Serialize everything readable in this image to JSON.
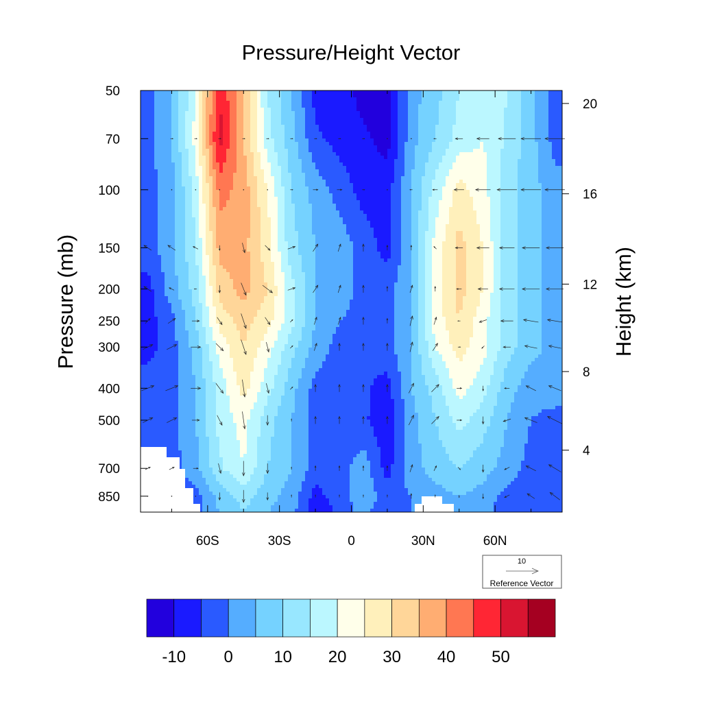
{
  "chart_data": {
    "type": "heatmap",
    "title": "Pressure/Height Vector",
    "ylabel": "Pressure (mb)",
    "ylabel_right": "Height (km)",
    "xlabel": "",
    "xlim": [
      -88,
      88
    ],
    "ylim": [
      50,
      950
    ],
    "y_scale": "log",
    "x_ticks": [
      {
        "value": -60,
        "label": "60S"
      },
      {
        "value": -30,
        "label": "30S"
      },
      {
        "value": 0,
        "label": "0"
      },
      {
        "value": 30,
        "label": "30N"
      },
      {
        "value": 60,
        "label": "60N"
      }
    ],
    "y_ticks": [
      50,
      70,
      100,
      150,
      200,
      250,
      300,
      400,
      500,
      700,
      850
    ],
    "y_ticks_right": [
      20,
      16,
      12,
      8,
      4
    ],
    "grid_lats": [
      -85,
      -75,
      -65,
      -55,
      -45,
      -35,
      -25,
      -15,
      -5,
      5,
      15,
      25,
      35,
      45,
      55,
      65,
      75,
      85
    ],
    "grid_pressures": [
      50,
      70,
      100,
      150,
      200,
      250,
      300,
      400,
      500,
      700,
      850,
      950
    ],
    "values": [
      [
        -2,
        5,
        20,
        50,
        35,
        15,
        5,
        -7,
        -7,
        -12,
        -12,
        3,
        8,
        15,
        20,
        15,
        7,
        -2
      ],
      [
        -2,
        5,
        22,
        52,
        35,
        17,
        7,
        -4,
        -7,
        -9,
        -12,
        3,
        10,
        17,
        20,
        14,
        7,
        -2
      ],
      [
        -2,
        3,
        17,
        42,
        38,
        25,
        10,
        3,
        -2,
        -7,
        -7,
        5,
        17,
        27,
        22,
        12,
        7,
        2
      ],
      [
        -2,
        3,
        15,
        37,
        37,
        27,
        12,
        5,
        3,
        -2,
        -7,
        5,
        22,
        32,
        25,
        12,
        7,
        3
      ],
      [
        -7,
        3,
        12,
        32,
        37,
        30,
        17,
        5,
        3,
        -2,
        -2,
        5,
        22,
        32,
        25,
        12,
        7,
        3
      ],
      [
        -7,
        -2,
        10,
        27,
        32,
        27,
        17,
        5,
        0,
        -2,
        -2,
        5,
        22,
        30,
        22,
        12,
        7,
        3
      ],
      [
        -7,
        -2,
        7,
        22,
        30,
        22,
        12,
        3,
        -2,
        -4,
        -2,
        5,
        20,
        27,
        22,
        12,
        7,
        3
      ],
      [
        -2,
        -2,
        5,
        17,
        27,
        17,
        7,
        -2,
        -2,
        -4,
        -7,
        5,
        12,
        22,
        17,
        7,
        2,
        3
      ],
      [
        -2,
        -2,
        5,
        17,
        22,
        12,
        5,
        -2,
        -4,
        -4,
        -9,
        3,
        10,
        17,
        12,
        5,
        0,
        -2
      ],
      [
        -2,
        -2,
        3,
        14,
        20,
        10,
        5,
        -2,
        -2,
        3,
        -7,
        3,
        7,
        10,
        7,
        3,
        -2,
        -2
      ],
      [
        -2,
        -2,
        -2,
        7,
        12,
        7,
        3,
        -7,
        -2,
        3,
        -2,
        0,
        3,
        5,
        3,
        -2,
        -4,
        -4
      ],
      [
        -2,
        -2,
        -2,
        5,
        10,
        5,
        2,
        -9,
        -4,
        2,
        -4,
        0,
        2,
        4,
        2,
        -3,
        -5,
        -5
      ]
    ],
    "vector_pressures": [
      70,
      100,
      150,
      200,
      250,
      300,
      400,
      500,
      700,
      850
    ],
    "vector_u": [
      [
        0,
        1,
        1,
        1,
        1,
        1,
        1,
        1,
        1,
        1,
        0,
        0,
        -1,
        -3,
        -5,
        -7,
        -8,
        -8
      ],
      [
        0,
        0,
        0,
        0,
        0,
        0,
        1,
        2,
        2,
        1,
        0,
        -1,
        -2,
        -4,
        -6,
        -8,
        -8,
        -8
      ],
      [
        -3,
        -3,
        -2,
        0,
        1,
        2,
        3,
        2,
        1,
        0,
        0,
        0,
        -1,
        -3,
        -5,
        -6,
        -7,
        -7
      ],
      [
        -3,
        -2,
        -1,
        0,
        2,
        4,
        3,
        2,
        1,
        0,
        0,
        1,
        0,
        -2,
        -4,
        -6,
        -7,
        -7
      ],
      [
        2,
        3,
        3,
        2,
        2,
        2,
        1,
        1,
        1,
        0,
        0,
        1,
        1,
        -1,
        -3,
        -5,
        -6,
        -6
      ],
      [
        4,
        4,
        4,
        3,
        2,
        1,
        1,
        1,
        0,
        0,
        0,
        1,
        2,
        1,
        -1,
        -3,
        -5,
        -5
      ],
      [
        5,
        5,
        4,
        3,
        1,
        1,
        1,
        0,
        0,
        0,
        0,
        2,
        3,
        2,
        0,
        -2,
        -4,
        -5
      ],
      [
        4,
        4,
        3,
        2,
        1,
        0,
        0,
        0,
        0,
        0,
        0,
        2,
        3,
        2,
        0,
        -3,
        -5,
        -6
      ],
      [
        2,
        2,
        2,
        1,
        0,
        0,
        0,
        0,
        0,
        0,
        0,
        1,
        1,
        1,
        0,
        -2,
        -4,
        -5
      ],
      [
        0,
        0,
        0,
        0,
        0,
        0,
        0,
        0,
        0,
        0,
        0,
        0,
        0,
        0,
        0,
        -2,
        -3,
        -4
      ]
    ],
    "vector_v": [
      [
        0,
        0,
        0,
        0,
        0,
        0,
        0,
        0,
        0,
        0,
        0,
        0,
        0,
        0,
        0,
        0,
        0,
        0
      ],
      [
        0,
        0,
        0,
        0,
        0,
        0,
        0,
        0,
        0,
        0,
        0,
        0,
        0,
        0,
        0,
        0,
        0,
        0
      ],
      [
        2,
        2,
        1,
        -2,
        -4,
        -2,
        1,
        3,
        3,
        3,
        2,
        2,
        1,
        0,
        0,
        0,
        0,
        0
      ],
      [
        2,
        1,
        0,
        -3,
        -5,
        -3,
        1,
        3,
        3,
        3,
        2,
        3,
        2,
        0,
        0,
        0,
        0,
        0
      ],
      [
        2,
        2,
        0,
        -3,
        -6,
        -3,
        1,
        3,
        3,
        3,
        2,
        4,
        3,
        0,
        -1,
        0,
        1,
        1
      ],
      [
        2,
        2,
        0,
        -3,
        -6,
        -4,
        1,
        3,
        3,
        3,
        3,
        4,
        3,
        0,
        -1,
        0,
        1,
        1
      ],
      [
        2,
        2,
        0,
        -4,
        -7,
        -4,
        1,
        3,
        3,
        3,
        3,
        4,
        3,
        0,
        -2,
        0,
        2,
        2
      ],
      [
        2,
        2,
        0,
        -4,
        -7,
        -4,
        1,
        3,
        3,
        3,
        3,
        4,
        3,
        0,
        -3,
        -1,
        2,
        3
      ],
      [
        1,
        1,
        0,
        -4,
        -6,
        -4,
        1,
        2,
        2,
        2,
        2,
        3,
        2,
        -1,
        -3,
        -1,
        2,
        3
      ],
      [
        0,
        0,
        0,
        -3,
        -5,
        -3,
        1,
        1,
        1,
        1,
        1,
        2,
        1,
        -1,
        -2,
        -1,
        2,
        3
      ]
    ],
    "reference_vector": {
      "magnitude": "10",
      "label": "Reference Vector"
    },
    "colorbar": {
      "levels": [
        -15,
        -10,
        -5,
        0,
        5,
        10,
        15,
        20,
        25,
        30,
        35,
        40,
        45,
        50,
        55
      ],
      "labels": [
        "-10",
        "0",
        "10",
        "20",
        "30",
        "40",
        "50"
      ],
      "label_levels": [
        -10,
        0,
        10,
        20,
        30,
        40,
        50
      ],
      "colors": [
        "#2200dd",
        "#1a1aff",
        "#2a5aff",
        "#55adff",
        "#75d2ff",
        "#98e7ff",
        "#bbf7ff",
        "#ffffea",
        "#fff0bb",
        "#ffd699",
        "#ffad72",
        "#ff7752",
        "#ff2634",
        "#d91531",
        "#a50021"
      ]
    }
  }
}
